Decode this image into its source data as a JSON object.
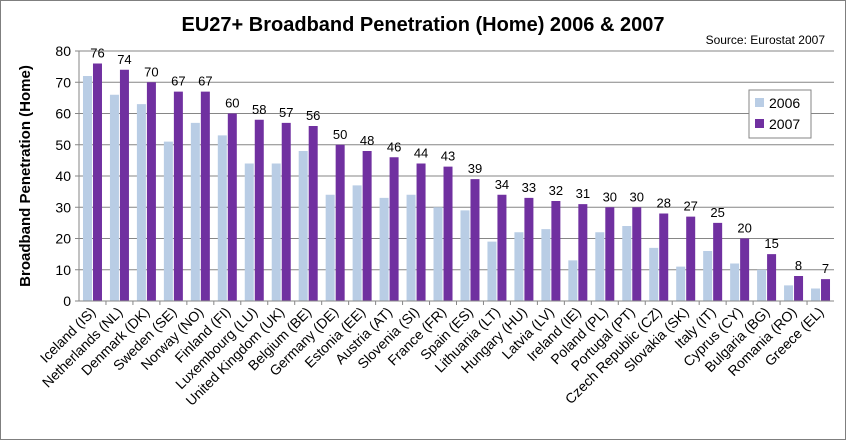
{
  "chart_data": {
    "type": "bar",
    "title": "EU27+ Broadband Penetration (Home) 2006 & 2007",
    "source": "Source: Eurostat 2007",
    "ylabel": "Broadband Penetration (Home)",
    "xlabel": "",
    "ylim": [
      0,
      80
    ],
    "yticks": [
      0,
      10,
      20,
      30,
      40,
      50,
      60,
      70,
      80
    ],
    "grid": true,
    "legend_position": "right",
    "categories": [
      "Iceland (IS)",
      "Netherlands (NL)",
      "Denmark (DK)",
      "Sweden (SE)",
      "Norway (NO)",
      "Finland (FI)",
      "Luxembourg (LU)",
      "United Kingdom (UK)",
      "Belgium (BE)",
      "Germany (DE)",
      "Estonia (EE)",
      "Austria (AT)",
      "Slovenia (SI)",
      "France (FR)",
      "Spain (ES)",
      "Lithuania (LT)",
      "Hungary (HU)",
      "Latvia (LV)",
      "Ireland (IE)",
      "Poland (PL)",
      "Portugal (PT)",
      "Czech Republic (CZ)",
      "Slovakia (SK)",
      "Italy (IT)",
      "Cyprus (CY)",
      "Bulgaria (BG)",
      "Romania (RO)",
      "Greece (EL)"
    ],
    "series": [
      {
        "name": "2006",
        "color": "#b9cde5",
        "labels": false,
        "values": [
          72,
          66,
          63,
          51,
          57,
          53,
          44,
          44,
          48,
          34,
          37,
          33,
          34,
          30,
          29,
          19,
          22,
          23,
          13,
          22,
          24,
          17,
          11,
          16,
          12,
          10,
          5,
          4
        ]
      },
      {
        "name": "2007",
        "color": "#7030a0",
        "labels": true,
        "values": [
          76,
          74,
          70,
          67,
          67,
          60,
          58,
          57,
          56,
          50,
          48,
          46,
          44,
          43,
          39,
          34,
          33,
          32,
          31,
          30,
          30,
          28,
          27,
          25,
          20,
          15,
          8,
          7
        ]
      }
    ]
  }
}
